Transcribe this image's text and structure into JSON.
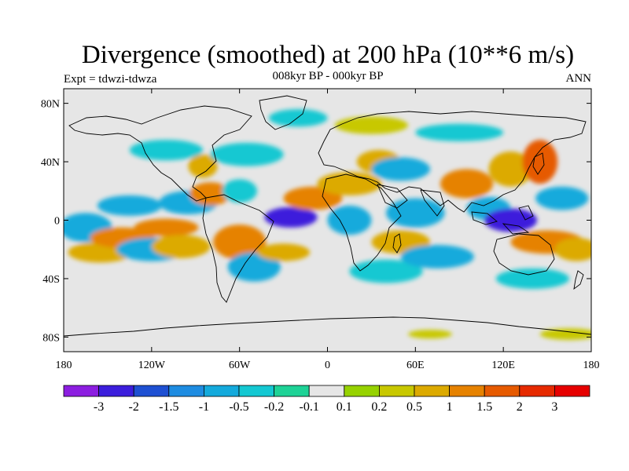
{
  "title": "Divergence (smoothed) at 200 hPa (10**6 m/s)",
  "left_label": "Expt = tdwzi-tdwza",
  "center_label": "008kyr BP - 000kyr BP",
  "right_label": "ANN",
  "chart_data": {
    "type": "heatmap",
    "projection": "cylindrical-equidistant",
    "lon_range": [
      -180,
      180
    ],
    "lat_range": [
      -90,
      90
    ],
    "lon_ticks": [
      {
        "value": -180,
        "label": "180"
      },
      {
        "value": -120,
        "label": "120W"
      },
      {
        "value": -60,
        "label": "60W"
      },
      {
        "value": 0,
        "label": "0"
      },
      {
        "value": 60,
        "label": "60E"
      },
      {
        "value": 120,
        "label": "120E"
      },
      {
        "value": 180,
        "label": "180"
      }
    ],
    "lat_ticks": [
      {
        "value": 80,
        "label": "80N"
      },
      {
        "value": 40,
        "label": "40N"
      },
      {
        "value": 0,
        "label": "0"
      },
      {
        "value": -40,
        "label": "40S"
      },
      {
        "value": -80,
        "label": "80S"
      }
    ],
    "levels": [
      "-3",
      "-2",
      "-1.5",
      "-1",
      "-0.5",
      "-0.2",
      "-0.1",
      "0.1",
      "0.2",
      "0.5",
      "1",
      "1.5",
      "2",
      "3"
    ],
    "colors": [
      "#8c1ee0",
      "#3c1edc",
      "#1e50d2",
      "#1e8ce1",
      "#14aadc",
      "#14c8d2",
      "#1ed296",
      "#e6e6e6",
      "#96d200",
      "#c8c800",
      "#dcaa00",
      "#e68200",
      "#e65a00",
      "#e62a00",
      "#e60000"
    ],
    "regions": [
      {
        "lon": -165,
        "lat": -5,
        "rx": 18,
        "ry": 10,
        "value": -0.8
      },
      {
        "lon": -155,
        "lat": -22,
        "rx": 22,
        "ry": 7,
        "value": 0.8
      },
      {
        "lon": -140,
        "lat": -12,
        "rx": 22,
        "ry": 7,
        "value": 1.2
      },
      {
        "lon": -120,
        "lat": -20,
        "rx": 24,
        "ry": 8,
        "value": -0.7
      },
      {
        "lon": -135,
        "lat": 10,
        "rx": 22,
        "ry": 7,
        "value": -0.6
      },
      {
        "lon": -110,
        "lat": -5,
        "rx": 22,
        "ry": 6,
        "value": 1.3
      },
      {
        "lon": -100,
        "lat": -18,
        "rx": 20,
        "ry": 8,
        "value": 0.9
      },
      {
        "lon": -95,
        "lat": 12,
        "rx": 20,
        "ry": 8,
        "value": -0.7
      },
      {
        "lon": -80,
        "lat": 18,
        "rx": 14,
        "ry": 8,
        "value": 1.1
      },
      {
        "lon": -85,
        "lat": 37,
        "rx": 10,
        "ry": 8,
        "value": 0.6
      },
      {
        "lon": -60,
        "lat": 20,
        "rx": 12,
        "ry": 8,
        "value": -0.4
      },
      {
        "lon": -55,
        "lat": 45,
        "rx": 25,
        "ry": 8,
        "value": -0.5
      },
      {
        "lon": -110,
        "lat": 48,
        "rx": 25,
        "ry": 7,
        "value": -0.4
      },
      {
        "lon": -60,
        "lat": -15,
        "rx": 18,
        "ry": 12,
        "value": 1.0
      },
      {
        "lon": -50,
        "lat": -32,
        "rx": 18,
        "ry": 10,
        "value": -0.6
      },
      {
        "lon": -25,
        "lat": 2,
        "rx": 18,
        "ry": 7,
        "value": -2.2
      },
      {
        "lon": -10,
        "lat": 15,
        "rx": 20,
        "ry": 8,
        "value": 1.2
      },
      {
        "lon": -30,
        "lat": -22,
        "rx": 18,
        "ry": 6,
        "value": 0.7
      },
      {
        "lon": 15,
        "lat": 25,
        "rx": 22,
        "ry": 8,
        "value": 0.9
      },
      {
        "lon": 35,
        "lat": 40,
        "rx": 15,
        "ry": 8,
        "value": 0.6
      },
      {
        "lon": 15,
        "lat": 0,
        "rx": 15,
        "ry": 10,
        "value": -0.6
      },
      {
        "lon": 50,
        "lat": 35,
        "rx": 20,
        "ry": 8,
        "value": -0.8
      },
      {
        "lon": 60,
        "lat": 5,
        "rx": 20,
        "ry": 10,
        "value": -0.6
      },
      {
        "lon": 50,
        "lat": -15,
        "rx": 20,
        "ry": 8,
        "value": 0.9
      },
      {
        "lon": 40,
        "lat": -35,
        "rx": 25,
        "ry": 8,
        "value": -0.3
      },
      {
        "lon": 75,
        "lat": -25,
        "rx": 25,
        "ry": 8,
        "value": -0.7
      },
      {
        "lon": 95,
        "lat": 25,
        "rx": 18,
        "ry": 10,
        "value": 1.2
      },
      {
        "lon": 110,
        "lat": 8,
        "rx": 15,
        "ry": 8,
        "value": -0.8
      },
      {
        "lon": 125,
        "lat": 0,
        "rx": 18,
        "ry": 8,
        "value": -2.3
      },
      {
        "lon": 125,
        "lat": 35,
        "rx": 15,
        "ry": 12,
        "value": 0.9
      },
      {
        "lon": 145,
        "lat": 40,
        "rx": 12,
        "ry": 15,
        "value": 1.5
      },
      {
        "lon": 160,
        "lat": 15,
        "rx": 18,
        "ry": 8,
        "value": -0.7
      },
      {
        "lon": 150,
        "lat": -15,
        "rx": 25,
        "ry": 8,
        "value": 1.1
      },
      {
        "lon": 170,
        "lat": -20,
        "rx": 15,
        "ry": 8,
        "value": 0.8
      },
      {
        "lon": 140,
        "lat": -40,
        "rx": 25,
        "ry": 7,
        "value": -0.5
      },
      {
        "lon": 165,
        "lat": -78,
        "rx": 20,
        "ry": 4,
        "value": 0.3
      },
      {
        "lon": 70,
        "lat": -78,
        "rx": 15,
        "ry": 3,
        "value": 0.3
      },
      {
        "lon": -20,
        "lat": 70,
        "rx": 20,
        "ry": 6,
        "value": -0.3
      },
      {
        "lon": 30,
        "lat": 65,
        "rx": 25,
        "ry": 6,
        "value": 0.3
      },
      {
        "lon": 90,
        "lat": 60,
        "rx": 30,
        "ry": 6,
        "value": -0.3
      }
    ]
  }
}
